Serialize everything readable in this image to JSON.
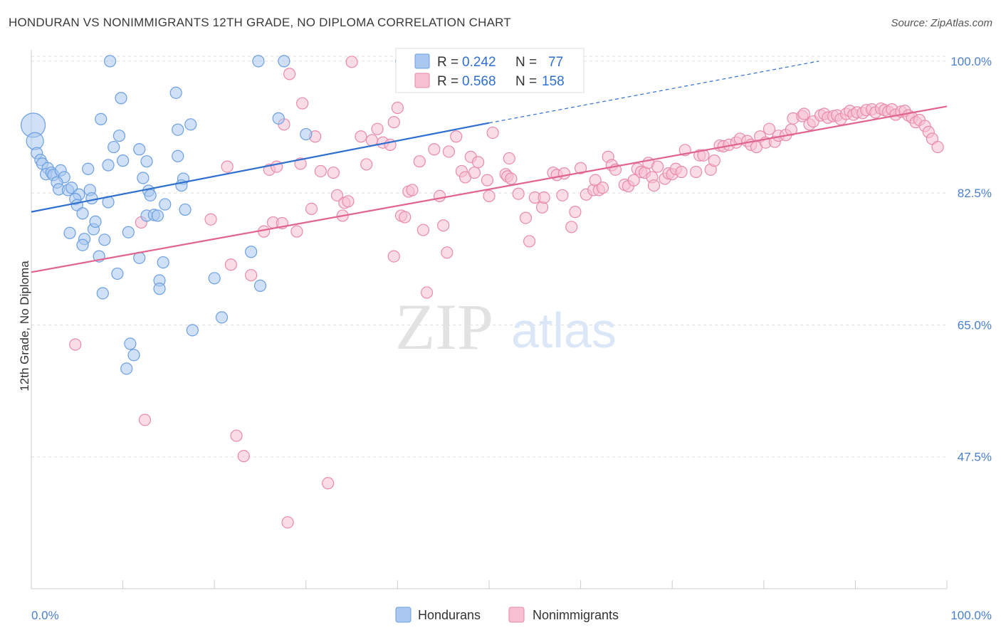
{
  "title": "HONDURAN VS NONIMMIGRANTS 12TH GRADE, NO DIPLOMA CORRELATION CHART",
  "source": "Source: ZipAtlas.com",
  "watermark": {
    "zip": "ZIP",
    "atlas": "atlas"
  },
  "colors": {
    "hondurans_fill": "#aac8f0",
    "hondurans_stroke": "#6b9fe0",
    "hondurans_line": "#2e6fd0",
    "nonimm_fill": "#f6bfd2",
    "nonimm_stroke": "#e88aab",
    "nonimm_line": "#e0648e",
    "tick_label": "#4a7fd0",
    "grid": "#dddddd"
  },
  "legend": {
    "r_label": "R =",
    "n_label": "N =",
    "rows": [
      {
        "r": "0.242",
        "n": "77"
      },
      {
        "r": "0.568",
        "n": "158"
      }
    ]
  },
  "chart_data": {
    "type": "scatter",
    "title": "HONDURAN VS NONIMMIGRANTS 12TH GRADE, NO DIPLOMA CORRELATION CHART",
    "xlabel": "",
    "ylabel": "12th Grade, No Diploma",
    "xlim": [
      0,
      100
    ],
    "ylim": [
      30,
      101.5
    ],
    "x_tick_labels": [
      "0.0%",
      "100.0%"
    ],
    "y_ticks": [
      47.5,
      65.0,
      82.5,
      100.0
    ],
    "y_tick_labels": [
      "47.5%",
      "65.0%",
      "82.5%",
      "100.0%"
    ],
    "grid": true,
    "legend_position": "top-center",
    "series": [
      {
        "name": "Hondurans",
        "r": 0.242,
        "n": 77,
        "trend": {
          "x": [
            0,
            50
          ],
          "y": [
            80.0,
            91.8
          ]
        },
        "trend_extension": {
          "x": [
            50,
            86
          ],
          "y": [
            91.8,
            100.0
          ]
        },
        "points": [
          [
            0.2,
            91.5
          ],
          [
            0.4,
            89.4
          ],
          [
            0.6,
            87.8
          ],
          [
            1.0,
            86.9
          ],
          [
            1.2,
            86.4
          ],
          [
            1.8,
            85.8
          ],
          [
            1.6,
            85.0
          ],
          [
            2.2,
            85.2
          ],
          [
            2.4,
            84.9
          ],
          [
            3.2,
            85.5
          ],
          [
            3.6,
            84.6
          ],
          [
            2.8,
            83.9
          ],
          [
            3.0,
            83.0
          ],
          [
            4.0,
            82.9
          ],
          [
            4.4,
            83.2
          ],
          [
            5.2,
            82.3
          ],
          [
            6.4,
            82.9
          ],
          [
            6.6,
            81.8
          ],
          [
            4.8,
            81.7
          ],
          [
            5.0,
            80.9
          ],
          [
            8.4,
            81.3
          ],
          [
            5.6,
            79.8
          ],
          [
            4.2,
            77.2
          ],
          [
            6.8,
            77.7
          ],
          [
            5.8,
            76.4
          ],
          [
            7.0,
            78.7
          ],
          [
            8.0,
            76.3
          ],
          [
            5.6,
            75.6
          ],
          [
            7.4,
            74.1
          ],
          [
            9.4,
            71.8
          ],
          [
            7.8,
            69.2
          ],
          [
            8.6,
            100.0
          ],
          [
            9.8,
            95.1
          ],
          [
            7.6,
            92.3
          ],
          [
            9.6,
            90.1
          ],
          [
            9.0,
            88.6
          ],
          [
            8.4,
            86.2
          ],
          [
            6.2,
            85.7
          ],
          [
            11.8,
            88.3
          ],
          [
            10.0,
            86.8
          ],
          [
            12.6,
            86.7
          ],
          [
            12.2,
            84.5
          ],
          [
            12.8,
            82.8
          ],
          [
            13.0,
            82.2
          ],
          [
            14.6,
            81.0
          ],
          [
            16.8,
            80.3
          ],
          [
            12.6,
            79.5
          ],
          [
            13.4,
            79.6
          ],
          [
            13.8,
            79.5
          ],
          [
            10.6,
            77.3
          ],
          [
            11.8,
            73.9
          ],
          [
            14.4,
            73.3
          ],
          [
            14.0,
            70.9
          ],
          [
            14.0,
            69.8
          ],
          [
            17.6,
            64.3
          ],
          [
            10.8,
            62.5
          ],
          [
            11.2,
            61.0
          ],
          [
            10.4,
            59.2
          ],
          [
            15.8,
            95.8
          ],
          [
            17.4,
            91.6
          ],
          [
            16.0,
            90.9
          ],
          [
            16.0,
            87.4
          ],
          [
            16.6,
            84.4
          ],
          [
            16.4,
            83.5
          ],
          [
            20.0,
            71.2
          ],
          [
            20.8,
            66.0
          ],
          [
            24.0,
            74.7
          ],
          [
            25.0,
            70.2
          ],
          [
            24.8,
            100.0
          ],
          [
            27.6,
            100.0
          ],
          [
            27.0,
            92.4
          ],
          [
            30.0,
            90.3
          ],
          [
            40.4,
            100.0
          ]
        ]
      },
      {
        "name": "Nonimmigrants",
        "r": 0.568,
        "n": 158,
        "trend": {
          "x": [
            0,
            100
          ],
          "y": [
            72.0,
            94.0
          ]
        },
        "points": [
          [
            4.8,
            62.4
          ],
          [
            12.0,
            78.6
          ],
          [
            12.4,
            52.4
          ],
          [
            19.6,
            79.0
          ],
          [
            21.4,
            86.0
          ],
          [
            21.8,
            73.0
          ],
          [
            22.4,
            50.3
          ],
          [
            23.2,
            47.6
          ],
          [
            24.0,
            71.6
          ],
          [
            25.4,
            77.4
          ],
          [
            26.0,
            85.6
          ],
          [
            26.4,
            78.6
          ],
          [
            26.8,
            86.0
          ],
          [
            27.4,
            78.5
          ],
          [
            27.6,
            91.6
          ],
          [
            28.2,
            98.3
          ],
          [
            28.0,
            38.8
          ],
          [
            29.0,
            77.4
          ],
          [
            29.4,
            86.4
          ],
          [
            29.6,
            94.4
          ],
          [
            30.6,
            80.4
          ],
          [
            31.0,
            90.0
          ],
          [
            31.6,
            85.4
          ],
          [
            32.4,
            44.0
          ],
          [
            33.0,
            85.2
          ],
          [
            33.4,
            82.2
          ],
          [
            34.0,
            79.5
          ],
          [
            34.2,
            81.2
          ],
          [
            34.6,
            81.4
          ],
          [
            35.0,
            99.9
          ],
          [
            36.0,
            90.0
          ],
          [
            36.6,
            86.3
          ],
          [
            37.2,
            89.5
          ],
          [
            37.8,
            91.0
          ],
          [
            38.4,
            89.2
          ],
          [
            39.2,
            88.9
          ],
          [
            39.6,
            91.9
          ],
          [
            39.6,
            74.1
          ],
          [
            40.0,
            93.8
          ],
          [
            40.4,
            79.5
          ],
          [
            40.8,
            79.3
          ],
          [
            41.2,
            82.7
          ],
          [
            41.6,
            82.9
          ],
          [
            42.4,
            86.7
          ],
          [
            42.8,
            77.6
          ],
          [
            43.2,
            69.3
          ],
          [
            44.0,
            88.3
          ],
          [
            44.6,
            82.1
          ],
          [
            45.0,
            78.2
          ],
          [
            45.4,
            74.6
          ],
          [
            45.6,
            88.0
          ],
          [
            46.4,
            90.0
          ],
          [
            47.0,
            85.4
          ],
          [
            47.4,
            84.6
          ],
          [
            48.0,
            87.3
          ],
          [
            48.4,
            85.2
          ],
          [
            48.8,
            86.6
          ],
          [
            49.8,
            84.2
          ],
          [
            50.0,
            82.1
          ],
          [
            50.4,
            90.5
          ],
          [
            51.8,
            85.0
          ],
          [
            52.0,
            84.7
          ],
          [
            52.2,
            87.1
          ],
          [
            52.4,
            84.4
          ],
          [
            53.2,
            82.4
          ],
          [
            54.0,
            79.2
          ],
          [
            54.4,
            76.1
          ],
          [
            55.0,
            81.9
          ],
          [
            55.8,
            80.6
          ],
          [
            56.0,
            81.9
          ],
          [
            57.0,
            85.2
          ],
          [
            57.4,
            84.9
          ],
          [
            58.0,
            82.2
          ],
          [
            58.2,
            85.1
          ],
          [
            59.0,
            78.0
          ],
          [
            59.4,
            80.0
          ],
          [
            60.0,
            85.8
          ],
          [
            60.6,
            82.3
          ],
          [
            61.4,
            82.9
          ],
          [
            61.6,
            84.2
          ],
          [
            62.0,
            82.9
          ],
          [
            62.4,
            83.2
          ],
          [
            63.0,
            87.3
          ],
          [
            63.4,
            86.2
          ],
          [
            63.8,
            85.6
          ],
          [
            64.8,
            83.6
          ],
          [
            65.2,
            83.4
          ],
          [
            65.8,
            84.2
          ],
          [
            66.2,
            85.7
          ],
          [
            66.6,
            85.3
          ],
          [
            67.0,
            85.2
          ],
          [
            67.4,
            86.5
          ],
          [
            67.8,
            84.6
          ],
          [
            68.0,
            83.5
          ],
          [
            68.4,
            86.0
          ],
          [
            69.2,
            84.4
          ],
          [
            69.6,
            85.1
          ],
          [
            70.0,
            85.0
          ],
          [
            70.4,
            85.7
          ],
          [
            71.0,
            85.3
          ],
          [
            71.4,
            88.2
          ],
          [
            72.6,
            85.3
          ],
          [
            73.0,
            87.5
          ],
          [
            73.4,
            87.5
          ],
          [
            74.2,
            85.6
          ],
          [
            74.6,
            86.8
          ],
          [
            75.2,
            88.8
          ],
          [
            75.6,
            88.7
          ],
          [
            76.2,
            88.9
          ],
          [
            77.0,
            89.2
          ],
          [
            77.4,
            89.7
          ],
          [
            78.2,
            89.4
          ],
          [
            78.6,
            88.9
          ],
          [
            79.2,
            88.6
          ],
          [
            79.6,
            90.0
          ],
          [
            80.2,
            89.2
          ],
          [
            80.6,
            91.0
          ],
          [
            81.2,
            89.3
          ],
          [
            81.6,
            90.1
          ],
          [
            82.4,
            90.2
          ],
          [
            83.0,
            90.9
          ],
          [
            83.2,
            92.4
          ],
          [
            84.2,
            92.7
          ],
          [
            84.4,
            93.0
          ],
          [
            85.0,
            91.6
          ],
          [
            85.4,
            92.0
          ],
          [
            86.2,
            92.8
          ],
          [
            86.6,
            93.0
          ],
          [
            87.0,
            92.5
          ],
          [
            87.6,
            92.7
          ],
          [
            88.0,
            92.8
          ],
          [
            88.4,
            92.3
          ],
          [
            89.0,
            93.0
          ],
          [
            89.4,
            93.4
          ],
          [
            89.8,
            92.9
          ],
          [
            90.2,
            93.2
          ],
          [
            90.8,
            93.1
          ],
          [
            91.2,
            93.5
          ],
          [
            91.8,
            93.6
          ],
          [
            92.2,
            93.2
          ],
          [
            92.8,
            93.7
          ],
          [
            93.2,
            93.5
          ],
          [
            93.6,
            93.3
          ],
          [
            94.0,
            93.6
          ],
          [
            94.4,
            92.9
          ],
          [
            95.0,
            93.3
          ],
          [
            95.4,
            93.4
          ],
          [
            95.8,
            92.8
          ],
          [
            96.2,
            92.5
          ],
          [
            96.6,
            91.9
          ],
          [
            97.0,
            92.2
          ],
          [
            97.6,
            91.4
          ],
          [
            98.0,
            90.6
          ],
          [
            98.4,
            89.7
          ],
          [
            99.0,
            88.6
          ]
        ]
      }
    ]
  },
  "bottom_legend": [
    {
      "label": "Hondurans"
    },
    {
      "label": "Nonimmigrants"
    }
  ]
}
